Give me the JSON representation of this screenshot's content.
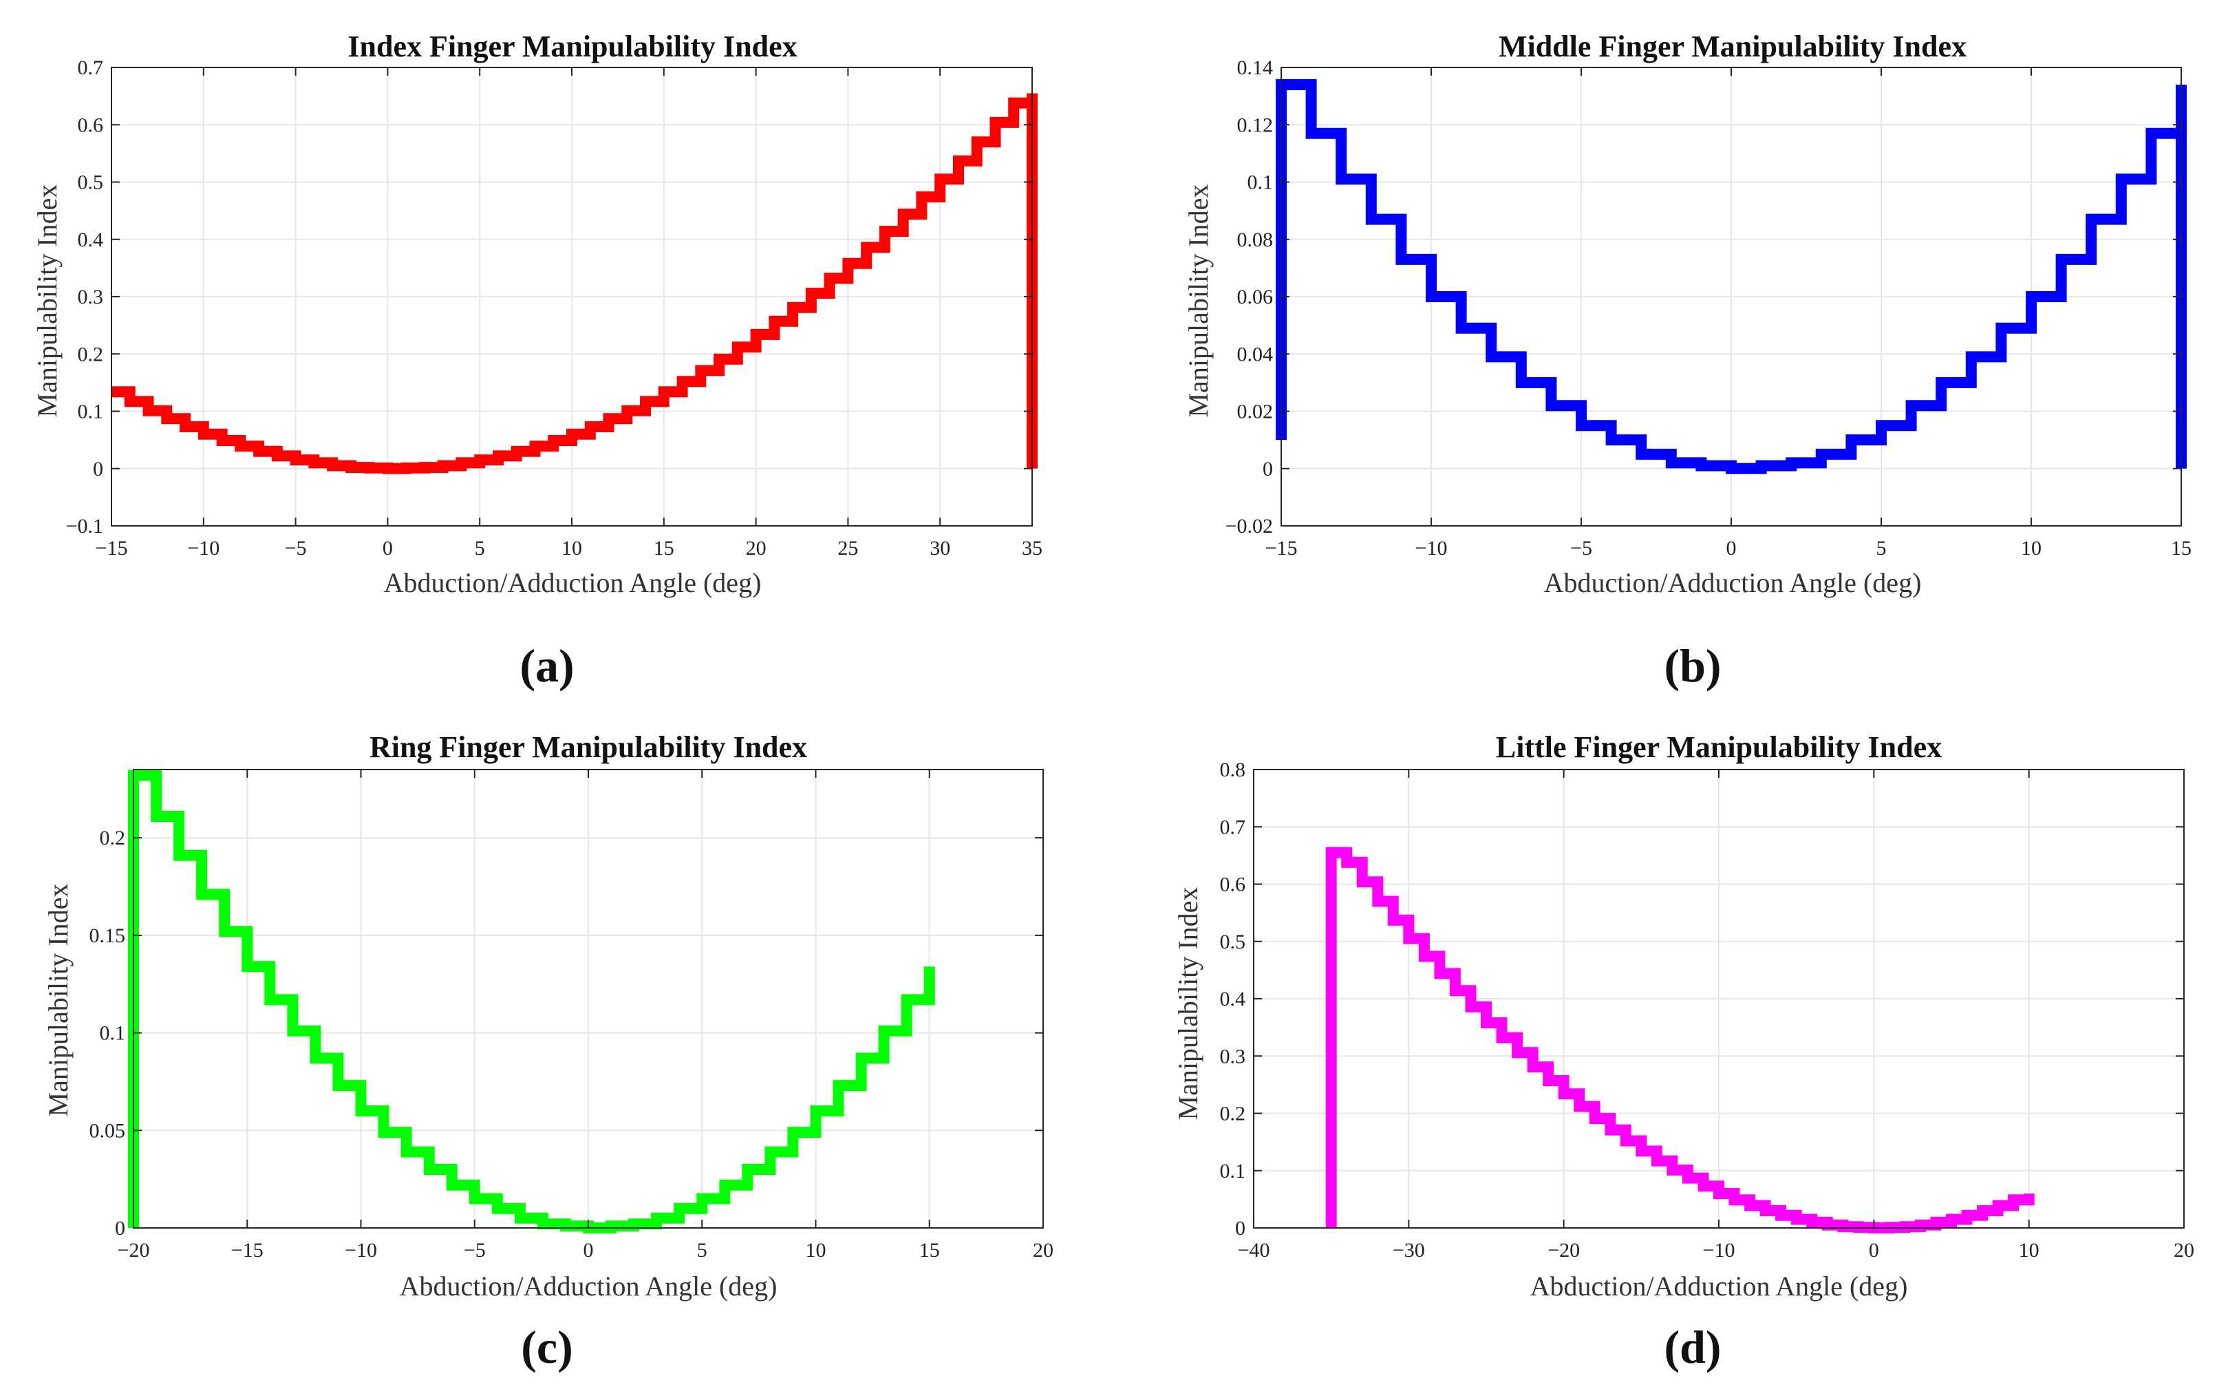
{
  "chart_data": [
    {
      "type": "line",
      "title": "Index Finger Manipulability Index",
      "xlabel": "Abduction/Adduction Angle (deg)",
      "ylabel": "Manipulability Index",
      "panel_label": "(a)",
      "color": "#ff0000",
      "xlim": [
        -15,
        35
      ],
      "ylim": [
        -0.1,
        0.7
      ],
      "xticks": [
        -15,
        -10,
        -5,
        0,
        5,
        10,
        15,
        20,
        25,
        30,
        35
      ],
      "yticks": [
        -0.1,
        0,
        0.1,
        0.2,
        0.3,
        0.4,
        0.5,
        0.6,
        0.7
      ],
      "xtick_labels": [
        "−15",
        "−10",
        "−5",
        "0",
        "5",
        "10",
        "15",
        "20",
        "25",
        "30",
        "35"
      ],
      "ytick_labels": [
        "−0.1",
        "0",
        "0.1",
        "0.2",
        "0.3",
        "0.4",
        "0.5",
        "0.6",
        "0.7"
      ],
      "grid": true,
      "series": [
        {
          "name": "Index",
          "x": [
            -15,
            -14,
            -13,
            -12,
            -11,
            -10,
            -9,
            -8,
            -7,
            -6,
            -5,
            -4,
            -3,
            -2,
            -1,
            0,
            1,
            2,
            3,
            4,
            5,
            6,
            7,
            8,
            9,
            10,
            11,
            12,
            13,
            14,
            15,
            16,
            17,
            18,
            19,
            20,
            21,
            22,
            23,
            24,
            25,
            26,
            27,
            28,
            29,
            30,
            31,
            32,
            33,
            34,
            35
          ],
          "y": [
            0.134,
            0.117,
            0.101,
            0.087,
            0.073,
            0.06,
            0.049,
            0.039,
            0.03,
            0.022,
            0.015,
            0.01,
            0.005,
            0.002,
            0.001,
            0,
            0.001,
            0.002,
            0.005,
            0.01,
            0.015,
            0.022,
            0.03,
            0.039,
            0.049,
            0.06,
            0.073,
            0.087,
            0.101,
            0.117,
            0.134,
            0.152,
            0.171,
            0.191,
            0.212,
            0.234,
            0.257,
            0.281,
            0.306,
            0.332,
            0.358,
            0.386,
            0.414,
            0.444,
            0.474,
            0.505,
            0.537,
            0.57,
            0.604,
            0.638,
            0.655
          ]
        }
      ],
      "drop_to": 0
    },
    {
      "type": "line",
      "title": "Middle Finger Manipulability Index",
      "xlabel": "Abduction/Adduction Angle (deg)",
      "ylabel": "Manipulability Index",
      "panel_label": "(b)",
      "color": "#0000ff",
      "xlim": [
        -15,
        15
      ],
      "ylim": [
        -0.02,
        0.14
      ],
      "xticks": [
        -15,
        -10,
        -5,
        0,
        5,
        10,
        15
      ],
      "yticks": [
        -0.02,
        0,
        0.02,
        0.04,
        0.06,
        0.08,
        0.1,
        0.12,
        0.14
      ],
      "xtick_labels": [
        "−15",
        "−10",
        "−5",
        "0",
        "5",
        "10",
        "15"
      ],
      "ytick_labels": [
        "−0.02",
        "0",
        "0.02",
        "0.04",
        "0.06",
        "0.08",
        "0.1",
        "0.12",
        "0.14"
      ],
      "grid": true,
      "series": [
        {
          "name": "Middle",
          "x": [
            -15,
            -14,
            -13,
            -12,
            -11,
            -10,
            -9,
            -8,
            -7,
            -6,
            -5,
            -4,
            -3,
            -2,
            -1,
            0,
            1,
            2,
            3,
            4,
            5,
            6,
            7,
            8,
            9,
            10,
            11,
            12,
            13,
            14,
            15
          ],
          "y": [
            0.134,
            0.117,
            0.101,
            0.087,
            0.073,
            0.06,
            0.049,
            0.039,
            0.03,
            0.022,
            0.015,
            0.01,
            0.005,
            0.002,
            0.001,
            0,
            0.001,
            0.002,
            0.005,
            0.01,
            0.015,
            0.022,
            0.03,
            0.039,
            0.049,
            0.06,
            0.073,
            0.087,
            0.101,
            0.117,
            0.134
          ]
        }
      ],
      "start_from": 0.01,
      "drop_to": 0
    },
    {
      "type": "line",
      "title": "Ring Finger Manipulability Index",
      "xlabel": "Abduction/Adduction Angle (deg)",
      "ylabel": "Manipulability Index",
      "panel_label": "(c)",
      "color": "#00ff00",
      "xlim": [
        -20,
        20
      ],
      "ylim": [
        0,
        0.235
      ],
      "xticks": [
        -20,
        -15,
        -10,
        -5,
        0,
        5,
        10,
        15,
        20
      ],
      "yticks": [
        0,
        0.05,
        0.1,
        0.15,
        0.2
      ],
      "xtick_labels": [
        "−20",
        "−15",
        "−10",
        "−5",
        "0",
        "5",
        "10",
        "15",
        "20"
      ],
      "ytick_labels": [
        "0",
        "0.05",
        "0.1",
        "0.15",
        "0.2"
      ],
      "grid": true,
      "series": [
        {
          "name": "Ring",
          "x": [
            -20,
            -19,
            -18,
            -17,
            -16,
            -15,
            -14,
            -13,
            -12,
            -11,
            -10,
            -9,
            -8,
            -7,
            -6,
            -5,
            -4,
            -3,
            -2,
            -1,
            0,
            1,
            2,
            3,
            4,
            5,
            6,
            7,
            8,
            9,
            10,
            11,
            12,
            13,
            14,
            15
          ],
          "y": [
            0.232,
            0.211,
            0.191,
            0.171,
            0.152,
            0.134,
            0.117,
            0.101,
            0.087,
            0.073,
            0.06,
            0.049,
            0.039,
            0.03,
            0.022,
            0.015,
            0.01,
            0.005,
            0.002,
            0.001,
            0,
            0.001,
            0.002,
            0.005,
            0.01,
            0.015,
            0.022,
            0.03,
            0.039,
            0.049,
            0.06,
            0.073,
            0.087,
            0.101,
            0.117,
            0.134
          ]
        }
      ],
      "start_from": 0,
      "end_at": 0.128
    },
    {
      "type": "line",
      "title": "Little Finger Manipulability Index",
      "xlabel": "Abduction/Adduction Angle (deg)",
      "ylabel": "Manipulability Index",
      "panel_label": "(d)",
      "color": "#ff00ff",
      "xlim": [
        -40,
        20
      ],
      "ylim": [
        0,
        0.8
      ],
      "xticks": [
        -40,
        -30,
        -20,
        -10,
        0,
        10,
        20
      ],
      "yticks": [
        0,
        0.1,
        0.2,
        0.3,
        0.4,
        0.5,
        0.6,
        0.7,
        0.8
      ],
      "xtick_labels": [
        "−40",
        "−30",
        "−20",
        "−10",
        "0",
        "10",
        "20"
      ],
      "ytick_labels": [
        "0",
        "0.1",
        "0.2",
        "0.3",
        "0.4",
        "0.5",
        "0.6",
        "0.7",
        "0.8"
      ],
      "grid": true,
      "series": [
        {
          "name": "Little",
          "x": [
            -35,
            -34,
            -33,
            -32,
            -31,
            -30,
            -29,
            -28,
            -27,
            -26,
            -25,
            -24,
            -23,
            -22,
            -21,
            -20,
            -19,
            -18,
            -17,
            -16,
            -15,
            -14,
            -13,
            -12,
            -11,
            -10,
            -9,
            -8,
            -7,
            -6,
            -5,
            -4,
            -3,
            -2,
            -1,
            0,
            1,
            2,
            3,
            4,
            5,
            6,
            7,
            8,
            9,
            10
          ],
          "y": [
            0.655,
            0.638,
            0.604,
            0.57,
            0.537,
            0.505,
            0.474,
            0.444,
            0.414,
            0.386,
            0.358,
            0.332,
            0.306,
            0.281,
            0.257,
            0.234,
            0.212,
            0.191,
            0.171,
            0.152,
            0.134,
            0.117,
            0.101,
            0.087,
            0.073,
            0.06,
            0.049,
            0.039,
            0.03,
            0.022,
            0.015,
            0.01,
            0.005,
            0.002,
            0.001,
            0,
            0.001,
            0.002,
            0.005,
            0.01,
            0.015,
            0.022,
            0.03,
            0.039,
            0.049,
            0.06
          ]
        }
      ],
      "start_from": 0
    }
  ]
}
